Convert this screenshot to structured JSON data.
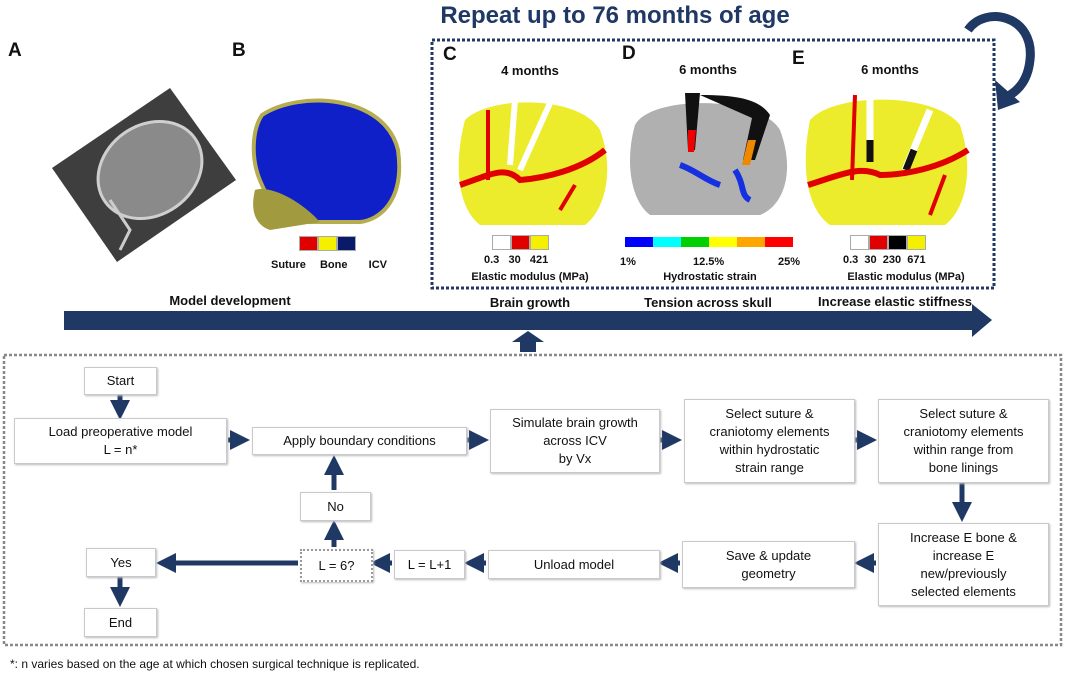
{
  "title": "Repeat up to 76 months of age",
  "colors": {
    "navy": "#1f3864",
    "suture": "#e00000",
    "bone": "#f5f000",
    "icv": "#0a1a8a",
    "gray": "#a8a8a8"
  },
  "panels": {
    "a": {
      "letter": "A"
    },
    "b": {
      "letter": "B",
      "legend": [
        "Suture",
        "Bone",
        "ICV"
      ]
    },
    "c": {
      "letter": "C",
      "age": "4 months",
      "legend_values": [
        "0.3",
        "30",
        "421"
      ],
      "legend_title": "Elastic modulus (MPa)",
      "caption": "Brain growth"
    },
    "d": {
      "letter": "D",
      "age": "6 months",
      "legend_values": [
        "1%",
        "12.5%",
        "25%"
      ],
      "legend_title": "Hydrostatic strain",
      "caption": "Tension across skull"
    },
    "e": {
      "letter": "E",
      "age": "6 months",
      "legend_values": [
        "0.3",
        "30",
        "230",
        "671"
      ],
      "legend_title": "Elastic modulus (MPa)",
      "caption": "Increase elastic stiffness"
    }
  },
  "model_caption": "Model development",
  "flow": {
    "start": "Start",
    "load": [
      "Load preoperative model",
      "L = n*"
    ],
    "apply": "Apply boundary conditions",
    "simulate": [
      "Simulate brain growth",
      "across ICV",
      "by Vx"
    ],
    "select1": [
      "Select suture &",
      "craniotomy elements",
      "within hydrostatic",
      "strain range"
    ],
    "select2": [
      "Select suture &",
      "craniotomy elements",
      "within range from",
      "bone linings"
    ],
    "increase": [
      "Increase E bone &",
      "increase E",
      "new/previously",
      "selected elements"
    ],
    "save": [
      "Save & update",
      "geometry"
    ],
    "unload": "Unload model",
    "increment": "L = L+1",
    "check": "L = 6?",
    "no": "No",
    "yes": "Yes",
    "end": "End"
  },
  "footnote": "*: n varies based on the age at which chosen surgical technique is replicated."
}
